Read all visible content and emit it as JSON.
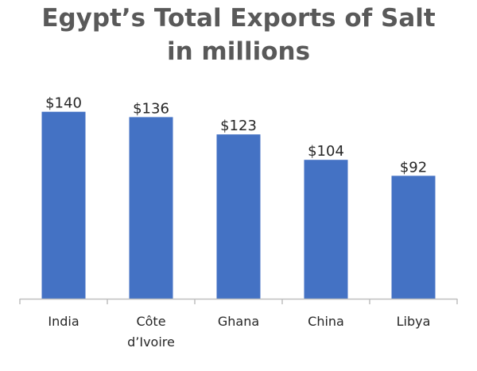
{
  "chart_data": {
    "type": "bar",
    "title_lines": [
      "Egypt’s Total Exports of Salt",
      "in millions"
    ],
    "categories": [
      [
        "India"
      ],
      [
        "Côte",
        "d’Ivoire"
      ],
      [
        "Ghana"
      ],
      [
        "China"
      ],
      [
        "Libya"
      ]
    ],
    "values": [
      140,
      136,
      123,
      104,
      92
    ],
    "value_labels": [
      "$140",
      "$136",
      "$123",
      "$104",
      "$92"
    ],
    "ylim": [
      0,
      150
    ],
    "grid": false,
    "legend": "none",
    "colors": {
      "bar": "#4472C4",
      "axis": "#BFBFBF",
      "title": "#595959",
      "text": "#262626"
    }
  }
}
